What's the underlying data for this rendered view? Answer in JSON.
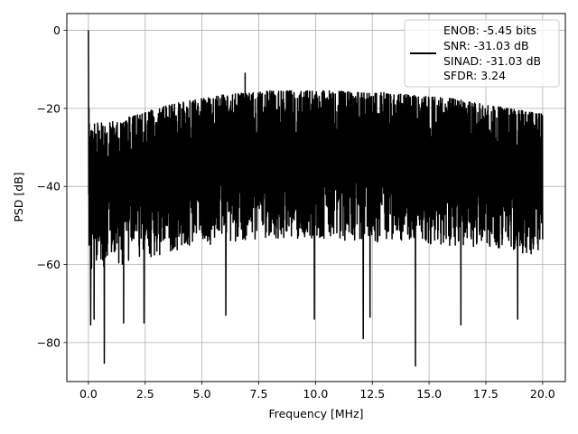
{
  "chart_data": {
    "type": "line",
    "xlabel": "Frequency [MHz]",
    "ylabel": "PSD [dB]",
    "xlim": [
      -0.95,
      21.0
    ],
    "ylim": [
      -90.0,
      4.3
    ],
    "xticks": [
      0.0,
      2.5,
      5.0,
      7.5,
      10.0,
      12.5,
      15.0,
      17.5,
      20.0
    ],
    "xtick_labels": [
      "0.0",
      "2.5",
      "5.0",
      "7.5",
      "10.0",
      "12.5",
      "15.0",
      "17.5",
      "20.0"
    ],
    "yticks": [
      0,
      -20,
      -40,
      -60,
      -80
    ],
    "ytick_labels": [
      "0",
      "−20",
      "−40",
      "−60",
      "−80"
    ],
    "grid": true,
    "legend_position": "upper-right",
    "legend_lines": [
      "ENOB: -5.45 bits",
      "SNR: -31.03 dB",
      "SINAD: -31.03 dB",
      "SFDR: 3.24"
    ],
    "series_color": "#000000",
    "frequency_max": 20.0,
    "noise_envelope": {
      "upper_x": [
        0.0,
        1.0,
        2.0,
        3.0,
        4.0,
        5.0,
        6.0,
        7.0,
        8.0,
        9.0,
        10.0,
        11.0,
        12.0,
        13.0,
        14.0,
        15.0,
        16.0,
        17.0,
        18.0,
        19.0,
        20.0
      ],
      "upper_y": [
        -24,
        -23,
        -22,
        -20,
        -18.5,
        -17.5,
        -16.5,
        -16,
        -15.5,
        -15.5,
        -15.5,
        -15.5,
        -16,
        -16,
        -16.5,
        -17,
        -17.5,
        -18.5,
        -19.5,
        -20.5,
        -21.5
      ],
      "lower_x": [
        0.0,
        2.0,
        4.0,
        6.0,
        8.0,
        10.0,
        12.0,
        14.0,
        16.0,
        18.0,
        20.0
      ],
      "lower_y": [
        -68,
        -66,
        -63,
        -61,
        -60,
        -60,
        -61,
        -61,
        -62,
        -63,
        -64
      ]
    },
    "peaks": [
      {
        "x": 0.0,
        "y": 0.0
      },
      {
        "x": 6.9,
        "y": -11.0
      }
    ],
    "dips": [
      {
        "x": 0.1,
        "y": -75.5
      },
      {
        "x": 0.25,
        "y": -74.0
      },
      {
        "x": 0.7,
        "y": -85.3
      },
      {
        "x": 1.55,
        "y": -75.0
      },
      {
        "x": 2.45,
        "y": -75.0
      },
      {
        "x": 6.05,
        "y": -73.0
      },
      {
        "x": 9.95,
        "y": -74.0
      },
      {
        "x": 12.1,
        "y": -79.0
      },
      {
        "x": 12.4,
        "y": -73.5
      },
      {
        "x": 14.4,
        "y": -86.0
      },
      {
        "x": 16.4,
        "y": -75.5
      },
      {
        "x": 18.9,
        "y": -74.0
      }
    ]
  }
}
